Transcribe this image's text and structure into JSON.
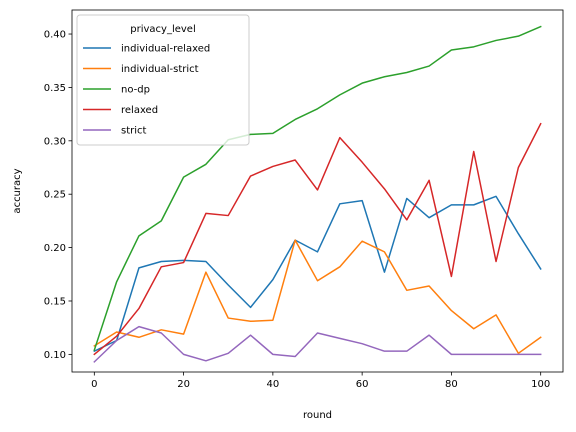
{
  "chart_data": {
    "type": "line",
    "title": "",
    "xlabel": "round",
    "ylabel": "accuracy",
    "xlim": [
      -5,
      105
    ],
    "ylim": [
      0.0835,
      0.4225
    ],
    "x_ticks": [
      0,
      20,
      40,
      60,
      80,
      100
    ],
    "y_ticks": [
      0.1,
      0.15,
      0.2,
      0.25,
      0.3,
      0.35,
      0.4
    ],
    "y_tick_labels": [
      "0.10",
      "0.15",
      "0.20",
      "0.25",
      "0.30",
      "0.35",
      "0.40"
    ],
    "grid": false,
    "legend": {
      "title": "privacy_level",
      "placement": "top-left"
    },
    "x": [
      0,
      5,
      10,
      15,
      20,
      25,
      30,
      35,
      40,
      45,
      50,
      55,
      60,
      65,
      70,
      75,
      80,
      85,
      90,
      95,
      100
    ],
    "series": [
      {
        "name": "individual-relaxed",
        "color": "#1f77b4",
        "values": [
          0.103,
          0.113,
          0.181,
          0.187,
          0.188,
          0.187,
          0.165,
          0.144,
          0.17,
          0.207,
          0.196,
          0.241,
          0.244,
          0.177,
          0.246,
          0.228,
          0.24,
          0.24,
          0.248,
          0.213,
          0.18
        ]
      },
      {
        "name": "individual-strict",
        "color": "#ff7f0e",
        "values": [
          0.108,
          0.121,
          0.116,
          0.123,
          0.119,
          0.177,
          0.134,
          0.131,
          0.132,
          0.207,
          0.169,
          0.182,
          0.206,
          0.196,
          0.16,
          0.164,
          0.141,
          0.124,
          0.137,
          0.101,
          0.116
        ]
      },
      {
        "name": "no-dp",
        "color": "#2ca02c",
        "values": [
          0.104,
          0.168,
          0.211,
          0.225,
          0.266,
          0.278,
          0.301,
          0.306,
          0.307,
          0.32,
          0.33,
          0.343,
          0.354,
          0.36,
          0.364,
          0.37,
          0.385,
          0.388,
          0.394,
          0.398,
          0.407
        ]
      },
      {
        "name": "relaxed",
        "color": "#d62728",
        "values": [
          0.1,
          0.117,
          0.143,
          0.182,
          0.186,
          0.232,
          0.23,
          0.267,
          0.276,
          0.282,
          0.254,
          0.303,
          0.28,
          0.255,
          0.226,
          0.263,
          0.173,
          0.29,
          0.187,
          0.275,
          0.316
        ]
      },
      {
        "name": "strict",
        "color": "#9467bd",
        "values": [
          0.093,
          0.113,
          0.126,
          0.12,
          0.1,
          0.094,
          0.101,
          0.118,
          0.1,
          0.098,
          0.12,
          0.115,
          0.11,
          0.103,
          0.103,
          0.118,
          0.1,
          0.1,
          0.1,
          0.1,
          0.1
        ]
      }
    ]
  }
}
